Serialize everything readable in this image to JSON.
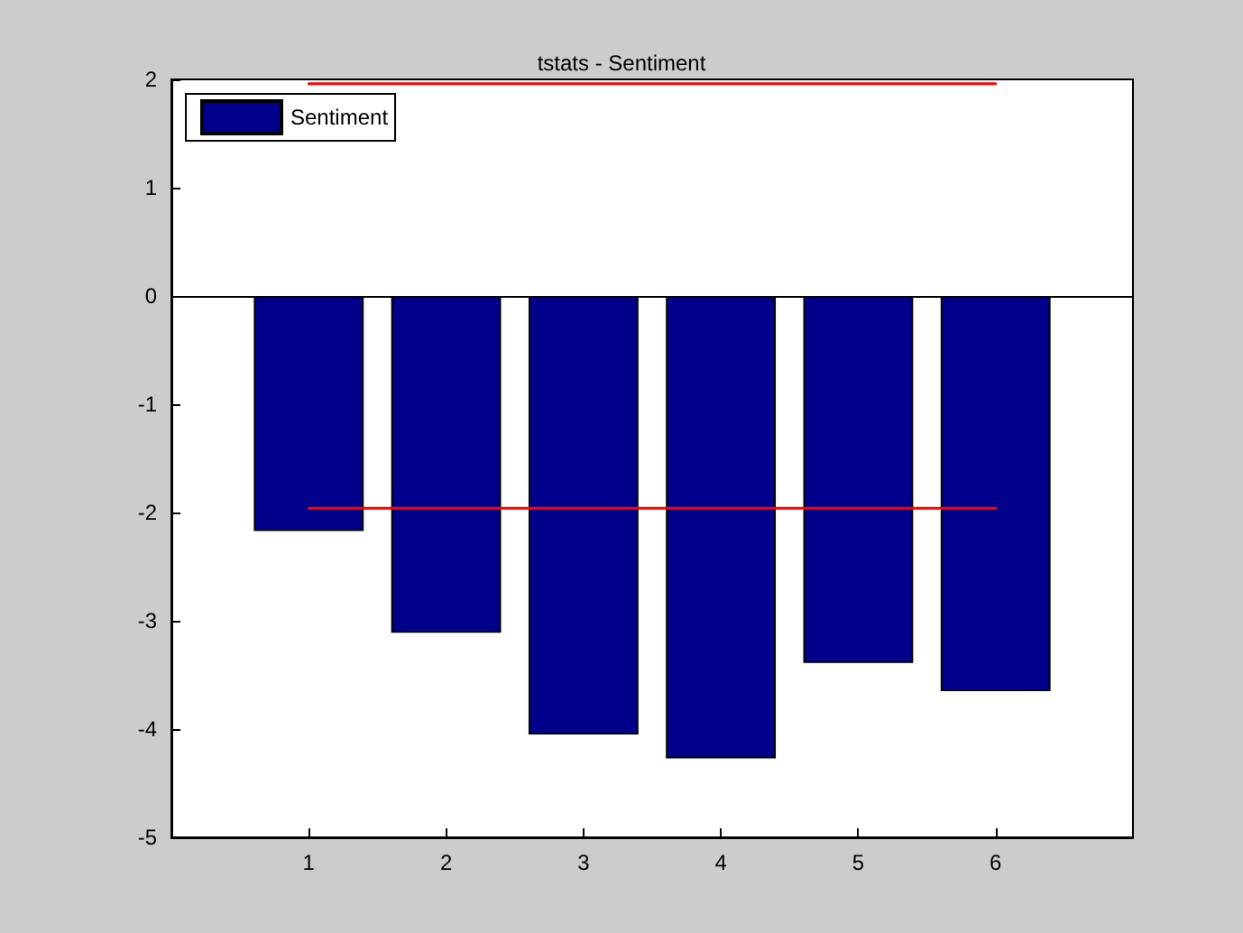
{
  "chart_data": {
    "type": "bar",
    "title": "tstats - Sentiment",
    "x": [
      1,
      2,
      3,
      4,
      5,
      6
    ],
    "series": [
      {
        "name": "Sentiment",
        "color": "#00008b",
        "values": [
          -2.17,
          -3.11,
          -4.05,
          -4.27,
          -3.39,
          -3.65
        ]
      },
      {
        "type": "line",
        "color": "#ff0000",
        "values": [
          -1.96,
          -1.96,
          -1.96,
          -1.96,
          -1.96,
          -1.96
        ]
      },
      {
        "type": "line",
        "color": "#ff0000",
        "values": [
          1.96,
          1.96,
          1.96,
          1.96,
          1.96,
          1.96
        ]
      }
    ],
    "ref_lines": [
      {
        "axis": "y",
        "value": 0,
        "color": "#000000"
      }
    ],
    "xlim": [
      0,
      7
    ],
    "xticks": [
      1,
      2,
      3,
      4,
      5,
      6
    ],
    "ylim": [
      -5,
      2
    ],
    "yticks": [
      -5,
      -4,
      -3,
      -2,
      -1,
      0,
      1,
      2
    ],
    "grid": false,
    "legend": "top left",
    "marker": "none",
    "line_style": "solid"
  }
}
